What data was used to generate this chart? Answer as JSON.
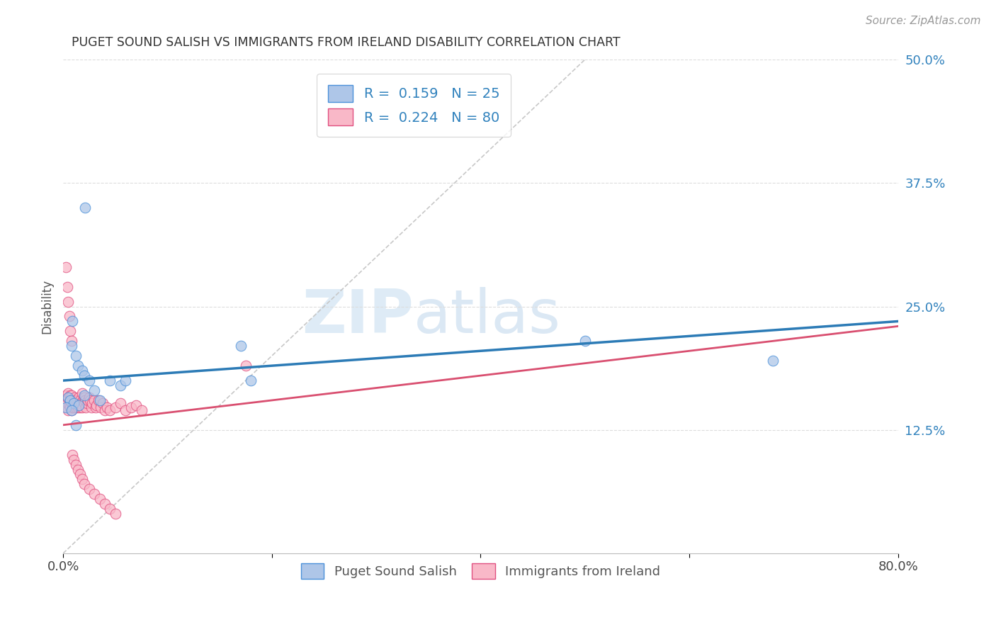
{
  "title": "PUGET SOUND SALISH VS IMMIGRANTS FROM IRELAND DISABILITY CORRELATION CHART",
  "source": "Source: ZipAtlas.com",
  "ylabel": "Disability",
  "xlim": [
    0,
    0.8
  ],
  "ylim": [
    0,
    0.5
  ],
  "xticks": [
    0.0,
    0.2,
    0.4,
    0.6,
    0.8
  ],
  "xtick_labels": [
    "0.0%",
    "",
    "",
    "",
    "80.0%"
  ],
  "yticks_right": [
    0.0,
    0.125,
    0.25,
    0.375,
    0.5
  ],
  "ytick_labels_right": [
    "",
    "12.5%",
    "25.0%",
    "37.5%",
    "50.0%"
  ],
  "legend_line1": "R =  0.159   N = 25",
  "legend_line2": "R =  0.224   N = 80",
  "color_blue_fill": "#aec6e8",
  "color_pink_fill": "#f9b8c8",
  "color_blue_edge": "#4a90d9",
  "color_pink_edge": "#e05080",
  "color_blue_line": "#2c7bb6",
  "color_pink_line": "#d94f70",
  "watermark_zip": "ZIP",
  "watermark_atlas": "atlas",
  "blue_scatter_x": [
    0.021,
    0.009,
    0.008,
    0.012,
    0.014,
    0.018,
    0.02,
    0.025,
    0.03,
    0.045,
    0.055,
    0.06,
    0.005,
    0.007,
    0.01,
    0.015,
    0.003,
    0.008,
    0.17,
    0.18,
    0.5,
    0.68,
    0.012,
    0.02,
    0.035
  ],
  "blue_scatter_y": [
    0.35,
    0.235,
    0.21,
    0.2,
    0.19,
    0.185,
    0.18,
    0.175,
    0.165,
    0.175,
    0.17,
    0.175,
    0.158,
    0.155,
    0.152,
    0.15,
    0.148,
    0.145,
    0.21,
    0.175,
    0.215,
    0.195,
    0.13,
    0.16,
    0.155
  ],
  "pink_scatter_x": [
    0.002,
    0.003,
    0.003,
    0.004,
    0.004,
    0.005,
    0.005,
    0.005,
    0.006,
    0.006,
    0.007,
    0.007,
    0.008,
    0.008,
    0.008,
    0.009,
    0.009,
    0.01,
    0.01,
    0.01,
    0.011,
    0.011,
    0.012,
    0.012,
    0.013,
    0.014,
    0.014,
    0.015,
    0.015,
    0.016,
    0.016,
    0.017,
    0.018,
    0.018,
    0.019,
    0.02,
    0.02,
    0.021,
    0.022,
    0.023,
    0.024,
    0.025,
    0.026,
    0.027,
    0.028,
    0.03,
    0.031,
    0.032,
    0.034,
    0.036,
    0.038,
    0.04,
    0.042,
    0.045,
    0.05,
    0.055,
    0.06,
    0.065,
    0.07,
    0.075,
    0.003,
    0.004,
    0.005,
    0.006,
    0.007,
    0.008,
    0.009,
    0.01,
    0.012,
    0.014,
    0.016,
    0.018,
    0.02,
    0.025,
    0.03,
    0.035,
    0.04,
    0.045,
    0.05,
    0.175
  ],
  "pink_scatter_y": [
    0.15,
    0.155,
    0.16,
    0.148,
    0.152,
    0.158,
    0.162,
    0.145,
    0.15,
    0.155,
    0.148,
    0.16,
    0.145,
    0.152,
    0.16,
    0.148,
    0.155,
    0.15,
    0.155,
    0.148,
    0.152,
    0.158,
    0.148,
    0.155,
    0.15,
    0.148,
    0.155,
    0.152,
    0.158,
    0.148,
    0.155,
    0.152,
    0.148,
    0.162,
    0.155,
    0.152,
    0.158,
    0.155,
    0.148,
    0.152,
    0.155,
    0.158,
    0.155,
    0.148,
    0.152,
    0.155,
    0.148,
    0.15,
    0.155,
    0.148,
    0.152,
    0.145,
    0.148,
    0.145,
    0.148,
    0.152,
    0.145,
    0.148,
    0.15,
    0.145,
    0.29,
    0.27,
    0.255,
    0.24,
    0.225,
    0.215,
    0.1,
    0.095,
    0.09,
    0.085,
    0.08,
    0.075,
    0.07,
    0.065,
    0.06,
    0.055,
    0.05,
    0.045,
    0.04,
    0.19
  ]
}
